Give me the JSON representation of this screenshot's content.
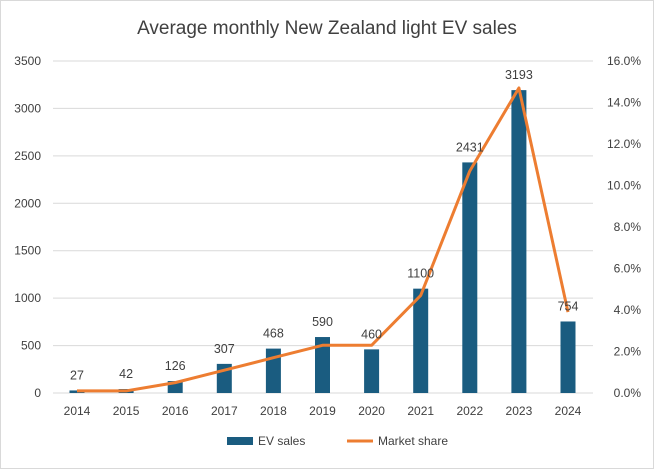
{
  "chart_data": {
    "type": "bar+line",
    "title": "Average monthly New Zealand light EV sales",
    "categories": [
      "2014",
      "2015",
      "2016",
      "2017",
      "2018",
      "2019",
      "2020",
      "2021",
      "2022",
      "2023",
      "2024"
    ],
    "series": [
      {
        "name": "EV sales",
        "type": "bar",
        "axis": "left",
        "color": "#1a5c80",
        "values": [
          27,
          42,
          126,
          307,
          468,
          590,
          460,
          1100,
          2431,
          3193,
          754
        ]
      },
      {
        "name": "Market share",
        "type": "line",
        "axis": "right",
        "color": "#ed7d31",
        "values": [
          0.1,
          0.1,
          0.5,
          1.1,
          1.7,
          2.3,
          2.3,
          4.7,
          10.7,
          14.7,
          3.9
        ]
      }
    ],
    "y_left": {
      "range": [
        0,
        3500
      ],
      "ticks": [
        "0",
        "500",
        "1000",
        "1500",
        "2000",
        "2500",
        "3000",
        "3500"
      ]
    },
    "y_right": {
      "range": [
        0,
        16
      ],
      "ticks": [
        "0.0%",
        "2.0%",
        "4.0%",
        "6.0%",
        "8.0%",
        "10.0%",
        "12.0%",
        "14.0%",
        "16.0%"
      ]
    },
    "grid": true,
    "legend": "bottom",
    "data_labels": [
      "27",
      "42",
      "126",
      "307",
      "468",
      "590",
      "460",
      "1100",
      "2431",
      "3193",
      "754"
    ]
  }
}
